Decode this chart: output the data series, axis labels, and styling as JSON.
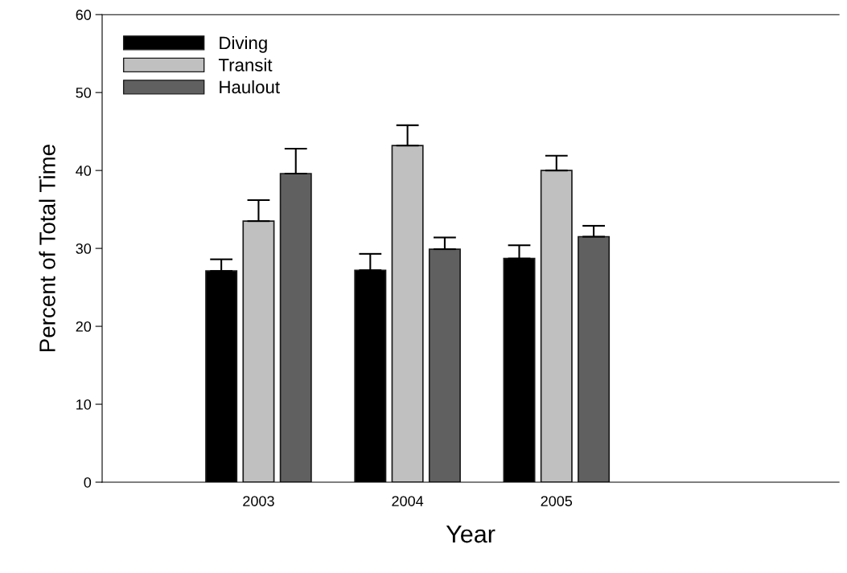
{
  "chart_data": {
    "type": "bar",
    "xlabel": "Year",
    "ylabel": "Percent of Total Time",
    "categories": [
      "2003",
      "2004",
      "2005"
    ],
    "series": [
      {
        "name": "Diving",
        "color": "#000000",
        "values": [
          27.1,
          27.2,
          28.7
        ],
        "errors": [
          [
            27.1,
            28.6
          ],
          [
            27.2,
            29.3
          ],
          [
            28.7,
            30.4
          ]
        ]
      },
      {
        "name": "Transit",
        "color": "#c0c0c0",
        "values": [
          33.5,
          43.2,
          40.0
        ],
        "errors": [
          [
            33.5,
            36.2
          ],
          [
            43.2,
            45.8
          ],
          [
            40.0,
            41.9
          ]
        ]
      },
      {
        "name": "Haulout",
        "color": "#606060",
        "values": [
          39.6,
          29.9,
          31.5
        ],
        "errors": [
          [
            39.6,
            42.8
          ],
          [
            29.9,
            31.4
          ],
          [
            31.5,
            32.9
          ]
        ]
      }
    ],
    "ylim": [
      0,
      60
    ],
    "yticks": [
      0,
      10,
      20,
      30,
      40,
      50,
      60
    ],
    "grid": false,
    "legend": "top left"
  }
}
